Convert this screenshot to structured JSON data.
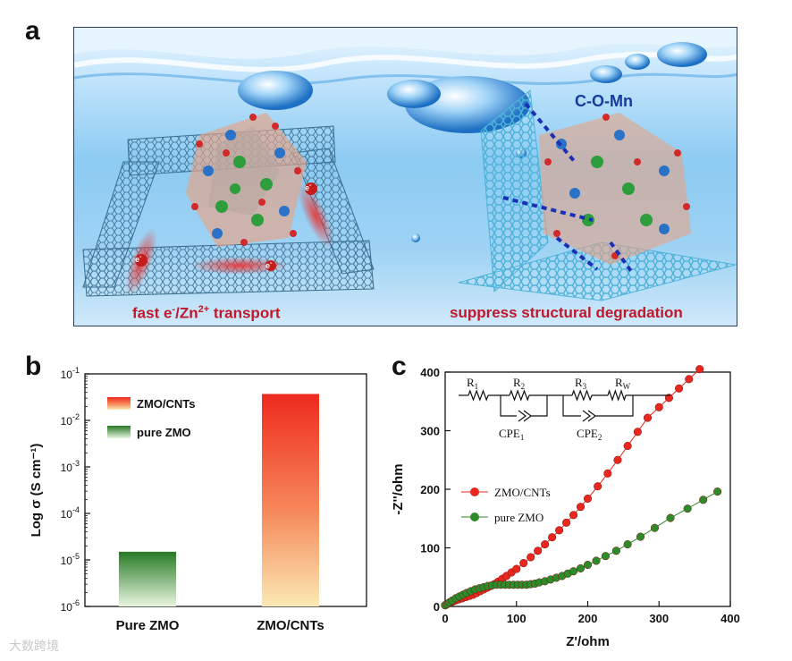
{
  "panel_a": {
    "letter": "a",
    "label_bond": "C-O-Mn",
    "caption_left_prefix": "fast e",
    "caption_left_sup1": "-",
    "caption_left_mid": "/Zn",
    "caption_left_sup2": "2+",
    "caption_left_suffix": " transport",
    "caption_right": "suppress structural degradation",
    "electron_label": "e",
    "electron_sup": "-"
  },
  "chart_data": [
    {
      "panel": "b",
      "type": "bar",
      "categories": [
        "Pure ZMO",
        "ZMO/CNTs"
      ],
      "values": [
        1.5e-05,
        0.037
      ],
      "scale": "log",
      "ylim": [
        1e-06,
        0.1
      ],
      "ylabel": "Log σ (S cm⁻¹)",
      "yticks": [
        {
          "base": "10",
          "exp": "-6",
          "value": 1e-06
        },
        {
          "base": "10",
          "exp": "-5",
          "value": 1e-05
        },
        {
          "base": "10",
          "exp": "-4",
          "value": 0.0001
        },
        {
          "base": "10",
          "exp": "-3",
          "value": 0.001
        },
        {
          "base": "10",
          "exp": "-2",
          "value": 0.01
        },
        {
          "base": "10",
          "exp": "-1",
          "value": 0.1
        }
      ],
      "legend": [
        {
          "name": "ZMO/CNTs",
          "color": "#e8281e"
        },
        {
          "name": "pure ZMO",
          "color": "#2e7d2a"
        }
      ],
      "legend_position": "top-left",
      "colors": {
        "ZMO/CNTs": "#ee2a1e",
        "Pure ZMO": "#287a25"
      }
    },
    {
      "panel": "c",
      "type": "scatter",
      "xlabel": "Z'/ohm",
      "ylabel": "-Z''/ohm",
      "xlim": [
        0,
        400
      ],
      "ylim": [
        0,
        400
      ],
      "xticks": [
        0,
        100,
        200,
        300,
        400
      ],
      "yticks": [
        0,
        100,
        200,
        300,
        400
      ],
      "legend_position": "center-left",
      "series": [
        {
          "name": "ZMO/CNTs",
          "color": "#e8281e",
          "x": [
            0,
            3,
            6,
            10,
            14,
            19,
            24,
            29,
            34,
            39,
            44,
            49,
            54,
            59,
            64,
            69,
            74,
            80,
            86,
            93,
            100,
            110,
            120,
            130,
            140,
            150,
            160,
            170,
            180,
            190,
            200,
            214,
            228,
            242,
            256,
            270,
            284,
            300,
            314,
            328,
            342,
            357
          ],
          "y": [
            2,
            4,
            6,
            8,
            10,
            12,
            14,
            16,
            18,
            20,
            23,
            26,
            29,
            32,
            35,
            38,
            42,
            47,
            52,
            58,
            64,
            74,
            84,
            95,
            106,
            118,
            130,
            143,
            156,
            170,
            184,
            205,
            227,
            250,
            274,
            298,
            322,
            340,
            356,
            372,
            388,
            405
          ]
        },
        {
          "name": "pure ZMO",
          "color": "#2e8b2a",
          "x": [
            0,
            3,
            6,
            10,
            15,
            20,
            25,
            30,
            36,
            42,
            48,
            54,
            60,
            66,
            72,
            78,
            84,
            90,
            96,
            102,
            108,
            114,
            120,
            126,
            132,
            140,
            148,
            156,
            164,
            172,
            180,
            190,
            200,
            212,
            225,
            240,
            256,
            274,
            294,
            316,
            340,
            362,
            382
          ],
          "y": [
            2,
            4,
            7,
            10,
            14,
            17,
            20,
            23,
            26,
            29,
            31,
            33,
            35,
            36,
            37,
            37,
            37,
            37,
            37,
            37,
            37,
            37,
            38,
            39,
            41,
            43,
            46,
            49,
            52,
            56,
            60,
            65,
            71,
            78,
            86,
            95,
            106,
            119,
            134,
            151,
            167,
            182,
            196
          ]
        }
      ]
    }
  ],
  "panel_b": {
    "letter": "b"
  },
  "panel_c": {
    "letter": "c",
    "circuit": {
      "r1": "R",
      "r1_sub": "1",
      "r2": "R",
      "r2_sub": "2",
      "r3": "R",
      "r3_sub": "3",
      "rw": "R",
      "rw_sub": "W",
      "cpe1": "CPE",
      "cpe1_sub": "1",
      "cpe2": "CPE",
      "cpe2_sub": "2"
    }
  },
  "watermark": "大数跨境"
}
